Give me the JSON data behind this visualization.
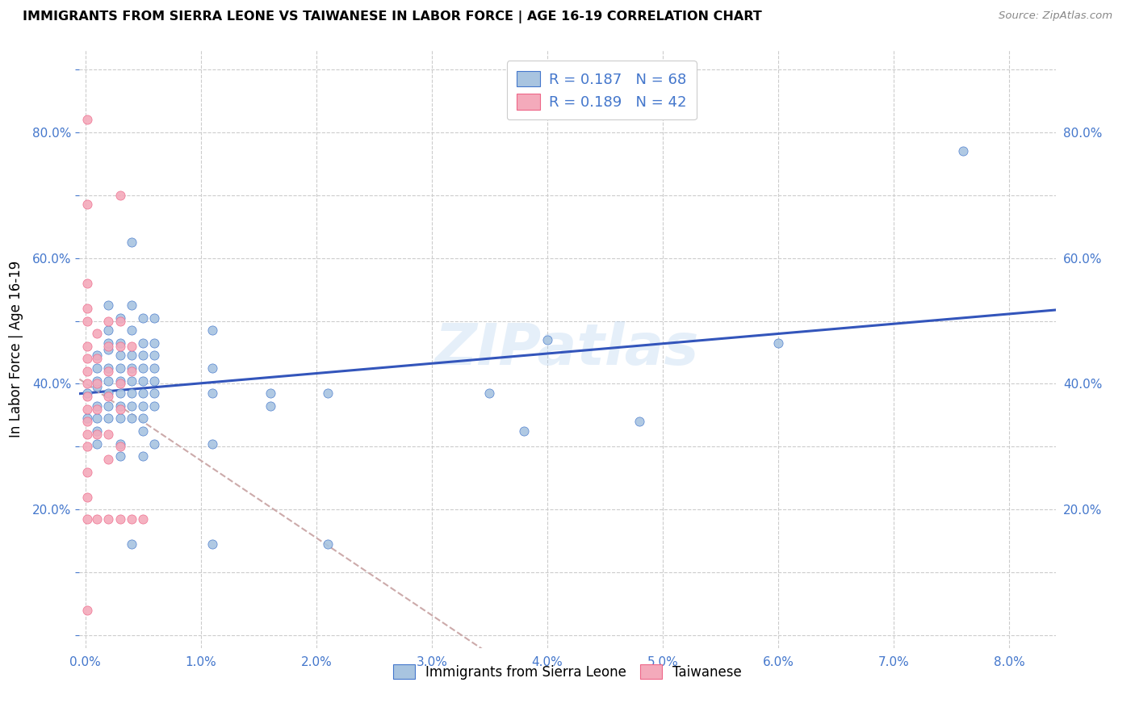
{
  "title": "IMMIGRANTS FROM SIERRA LEONE VS TAIWANESE IN LABOR FORCE | AGE 16-19 CORRELATION CHART",
  "source": "Source: ZipAtlas.com",
  "ylabel": "In Labor Force | Age 16-19",
  "x_ticks": [
    0.0,
    0.01,
    0.02,
    0.03,
    0.04,
    0.05,
    0.06,
    0.07,
    0.08
  ],
  "x_tick_labels": [
    "0.0%",
    "1.0%",
    "2.0%",
    "3.0%",
    "4.0%",
    "5.0%",
    "6.0%",
    "7.0%",
    "8.0%"
  ],
  "y_ticks": [
    0.0,
    0.1,
    0.2,
    0.3,
    0.4,
    0.5,
    0.6,
    0.7,
    0.8,
    0.9
  ],
  "y_tick_labels": [
    "",
    "",
    "20.0%",
    "",
    "40.0%",
    "",
    "60.0%",
    "",
    "80.0%",
    ""
  ],
  "xlim": [
    -0.0005,
    0.084
  ],
  "ylim": [
    -0.02,
    0.93
  ],
  "color_blue": "#A8C4E0",
  "color_pink": "#F4AABB",
  "color_blue_dark": "#4477CC",
  "color_pink_dark": "#EE6688",
  "color_blue_line": "#3355BB",
  "color_pink_line": "#EE8899",
  "watermark": "ZIPatlas",
  "legend_labels": [
    "Immigrants from Sierra Leone",
    "Taiwanese"
  ],
  "blue_points": [
    [
      0.0002,
      0.385
    ],
    [
      0.0002,
      0.345
    ],
    [
      0.001,
      0.425
    ],
    [
      0.001,
      0.395
    ],
    [
      0.001,
      0.365
    ],
    [
      0.001,
      0.345
    ],
    [
      0.001,
      0.325
    ],
    [
      0.001,
      0.305
    ],
    [
      0.001,
      0.445
    ],
    [
      0.001,
      0.405
    ],
    [
      0.002,
      0.455
    ],
    [
      0.002,
      0.425
    ],
    [
      0.002,
      0.405
    ],
    [
      0.002,
      0.385
    ],
    [
      0.002,
      0.365
    ],
    [
      0.002,
      0.345
    ],
    [
      0.002,
      0.485
    ],
    [
      0.002,
      0.465
    ],
    [
      0.002,
      0.525
    ],
    [
      0.003,
      0.505
    ],
    [
      0.003,
      0.465
    ],
    [
      0.003,
      0.445
    ],
    [
      0.003,
      0.425
    ],
    [
      0.003,
      0.405
    ],
    [
      0.003,
      0.385
    ],
    [
      0.003,
      0.365
    ],
    [
      0.003,
      0.345
    ],
    [
      0.003,
      0.305
    ],
    [
      0.003,
      0.285
    ],
    [
      0.004,
      0.485
    ],
    [
      0.004,
      0.445
    ],
    [
      0.004,
      0.425
    ],
    [
      0.004,
      0.405
    ],
    [
      0.004,
      0.385
    ],
    [
      0.004,
      0.365
    ],
    [
      0.004,
      0.345
    ],
    [
      0.004,
      0.145
    ],
    [
      0.004,
      0.625
    ],
    [
      0.004,
      0.525
    ],
    [
      0.005,
      0.505
    ],
    [
      0.005,
      0.465
    ],
    [
      0.005,
      0.445
    ],
    [
      0.005,
      0.425
    ],
    [
      0.005,
      0.405
    ],
    [
      0.005,
      0.385
    ],
    [
      0.005,
      0.365
    ],
    [
      0.005,
      0.345
    ],
    [
      0.005,
      0.325
    ],
    [
      0.005,
      0.285
    ],
    [
      0.006,
      0.505
    ],
    [
      0.006,
      0.465
    ],
    [
      0.006,
      0.445
    ],
    [
      0.006,
      0.425
    ],
    [
      0.006,
      0.405
    ],
    [
      0.006,
      0.385
    ],
    [
      0.006,
      0.365
    ],
    [
      0.006,
      0.305
    ],
    [
      0.011,
      0.485
    ],
    [
      0.011,
      0.425
    ],
    [
      0.011,
      0.385
    ],
    [
      0.011,
      0.305
    ],
    [
      0.011,
      0.145
    ],
    [
      0.016,
      0.385
    ],
    [
      0.016,
      0.365
    ],
    [
      0.021,
      0.385
    ],
    [
      0.021,
      0.145
    ],
    [
      0.035,
      0.385
    ],
    [
      0.038,
      0.325
    ],
    [
      0.04,
      0.47
    ],
    [
      0.048,
      0.34
    ],
    [
      0.06,
      0.465
    ],
    [
      0.076,
      0.77
    ]
  ],
  "pink_points": [
    [
      0.0002,
      0.82
    ],
    [
      0.0002,
      0.685
    ],
    [
      0.0002,
      0.56
    ],
    [
      0.0002,
      0.52
    ],
    [
      0.0002,
      0.5
    ],
    [
      0.0002,
      0.46
    ],
    [
      0.0002,
      0.44
    ],
    [
      0.0002,
      0.42
    ],
    [
      0.0002,
      0.4
    ],
    [
      0.0002,
      0.38
    ],
    [
      0.0002,
      0.36
    ],
    [
      0.0002,
      0.34
    ],
    [
      0.0002,
      0.32
    ],
    [
      0.0002,
      0.3
    ],
    [
      0.0002,
      0.26
    ],
    [
      0.0002,
      0.22
    ],
    [
      0.0002,
      0.185
    ],
    [
      0.0002,
      0.04
    ],
    [
      0.001,
      0.48
    ],
    [
      0.001,
      0.44
    ],
    [
      0.001,
      0.4
    ],
    [
      0.001,
      0.36
    ],
    [
      0.001,
      0.32
    ],
    [
      0.001,
      0.185
    ],
    [
      0.002,
      0.5
    ],
    [
      0.002,
      0.46
    ],
    [
      0.002,
      0.42
    ],
    [
      0.002,
      0.38
    ],
    [
      0.002,
      0.32
    ],
    [
      0.002,
      0.28
    ],
    [
      0.002,
      0.185
    ],
    [
      0.003,
      0.7
    ],
    [
      0.003,
      0.5
    ],
    [
      0.003,
      0.46
    ],
    [
      0.003,
      0.4
    ],
    [
      0.003,
      0.36
    ],
    [
      0.003,
      0.3
    ],
    [
      0.003,
      0.185
    ],
    [
      0.004,
      0.46
    ],
    [
      0.004,
      0.42
    ],
    [
      0.004,
      0.185
    ],
    [
      0.005,
      0.185
    ]
  ]
}
